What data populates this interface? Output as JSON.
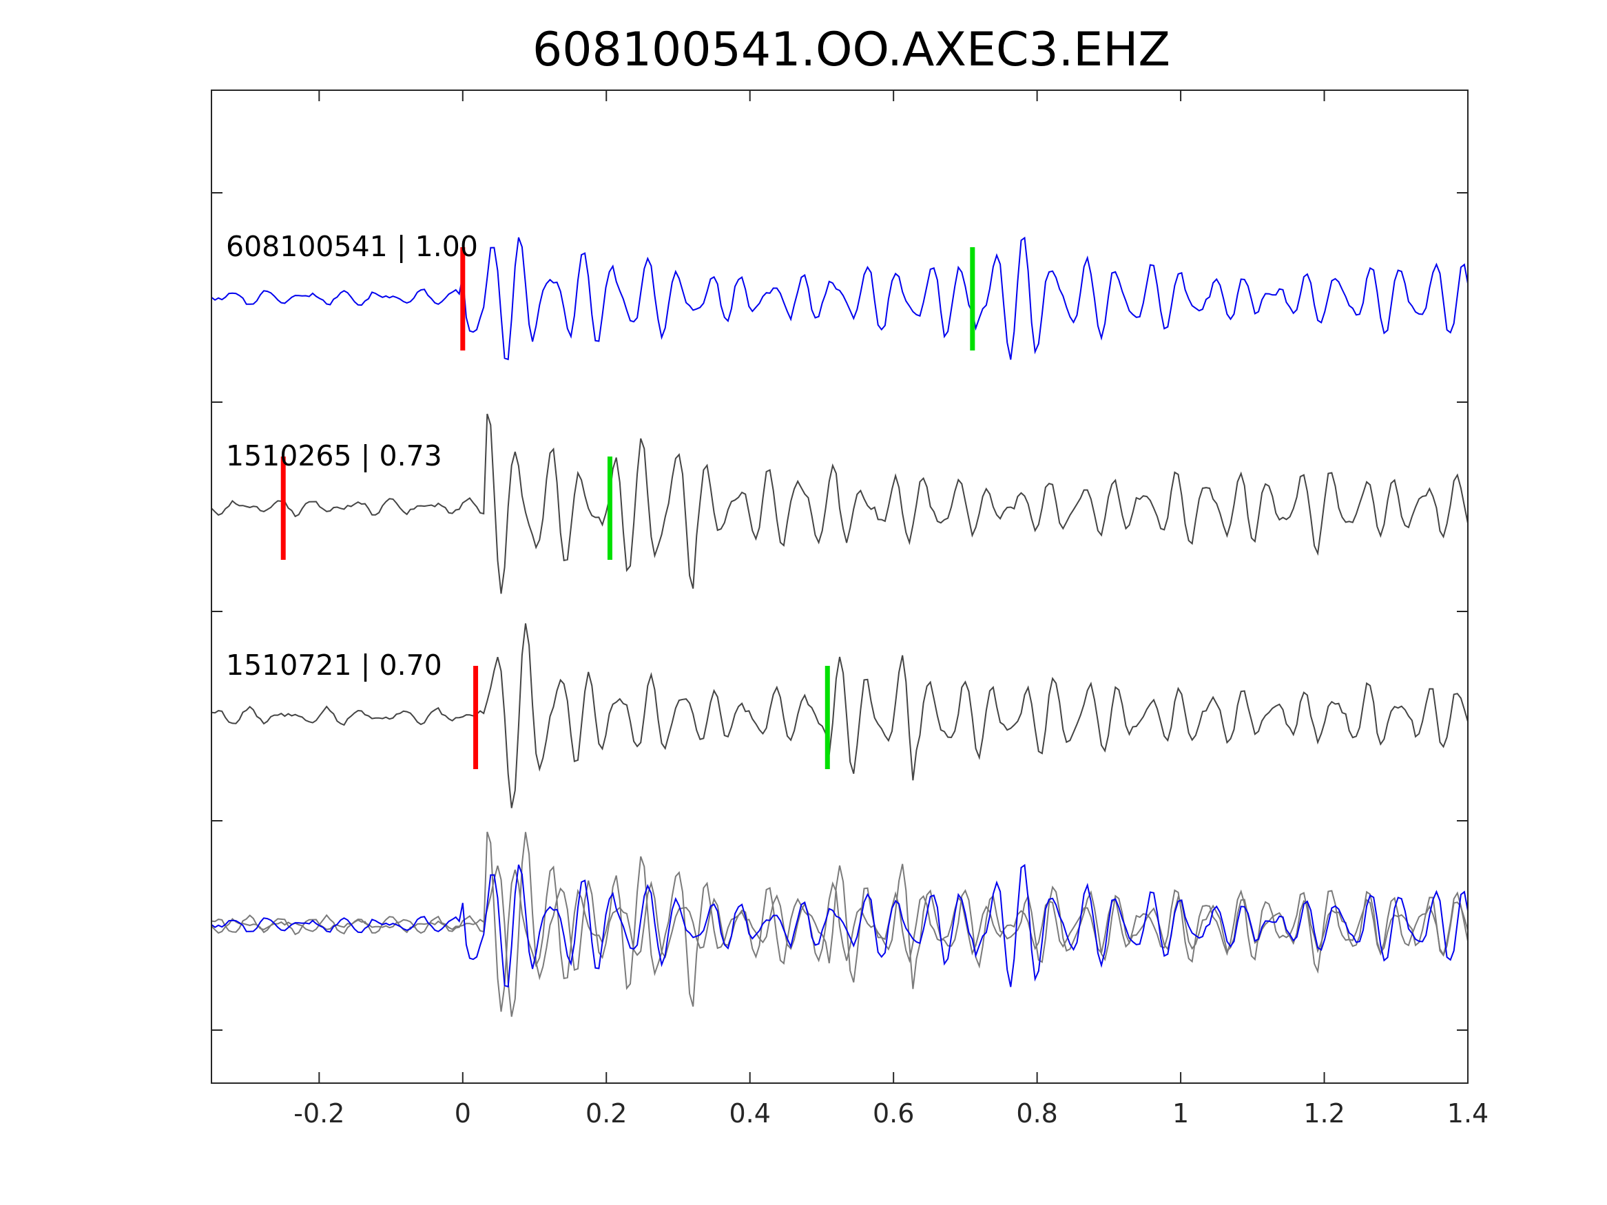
{
  "chart_data": {
    "type": "line",
    "title": "608100541.OO.AXEC3.EHZ",
    "xlabel": "",
    "ylabel": "",
    "xlim": [
      -0.35,
      1.4
    ],
    "x_ticks": [
      -0.2,
      0,
      0.2,
      0.4,
      0.6,
      0.8,
      1,
      1.2,
      1.4
    ],
    "x_tick_labels": [
      "-0.2",
      "0",
      "0.2",
      "0.4",
      "0.6",
      "0.8",
      "1",
      "1.2",
      "1.4"
    ],
    "grid": false,
    "colors": {
      "template": "#0000ee",
      "match": "#444444",
      "overlay_match": "#7a7a7a",
      "p_pick": "#ff0000",
      "s_pick": "#00e000"
    },
    "traces": [
      {
        "label": "608100541 | 1.00",
        "event": "608100541",
        "correlation": 1.0,
        "p_pick": 0.0,
        "s_pick": 0.71,
        "color": "template"
      },
      {
        "label": "1510265 | 0.73",
        "event": "1510265",
        "correlation": 0.73,
        "p_pick": -0.25,
        "s_pick": 0.205,
        "color": "match"
      },
      {
        "label": "1510721 | 0.70",
        "event": "1510721",
        "correlation": 0.7,
        "p_pick": 0.018,
        "s_pick": 0.508,
        "color": "match"
      }
    ],
    "overlay": {
      "traces": [
        "608100541",
        "1510265",
        "1510721"
      ]
    }
  }
}
